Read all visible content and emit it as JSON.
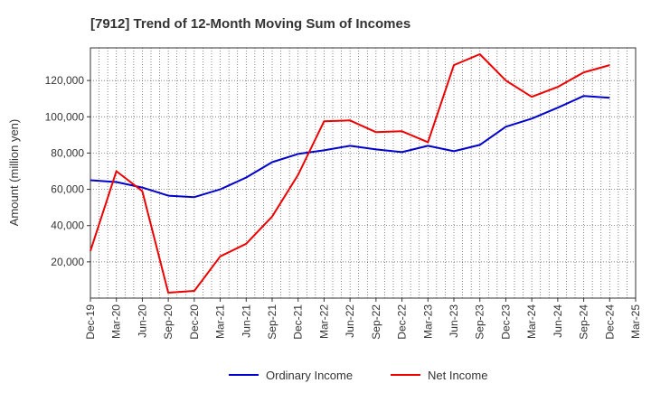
{
  "chart_data": {
    "type": "line",
    "title": "[7912]  Trend of 12-Month Moving Sum of Incomes",
    "xlabel": "",
    "ylabel": "Amount (million yen)",
    "categories": [
      "Dec-19",
      "Mar-20",
      "Jun-20",
      "Sep-20",
      "Dec-20",
      "Mar-21",
      "Jun-21",
      "Sep-21",
      "Dec-21",
      "Mar-22",
      "Jun-22",
      "Sep-22",
      "Dec-22",
      "Mar-23",
      "Jun-23",
      "Sep-23",
      "Dec-23",
      "Mar-24",
      "Jun-24",
      "Sep-24",
      "Dec-24",
      "Mar-25"
    ],
    "ylim": [
      0,
      138000
    ],
    "yticks": [
      20000,
      40000,
      60000,
      80000,
      100000,
      120000
    ],
    "ytick_labels": [
      "20,000",
      "40,000",
      "60,000",
      "80,000",
      "100,000",
      "120,000"
    ],
    "grid": true,
    "legend_position": "bottom",
    "series": [
      {
        "name": "Ordinary Income",
        "color": "#0000cc",
        "values": [
          65000,
          64000,
          61000,
          56500,
          55700,
          60000,
          66500,
          75000,
          79500,
          81500,
          84000,
          82000,
          80500,
          84000,
          81000,
          84500,
          94500,
          99000,
          105000,
          111500,
          110500,
          null
        ]
      },
      {
        "name": "Net Income",
        "color": "#ee0000",
        "values": [
          26000,
          70000,
          59000,
          3000,
          4000,
          23000,
          30000,
          45000,
          68000,
          97500,
          98000,
          91500,
          92000,
          86000,
          128500,
          134500,
          120000,
          111000,
          116500,
          124500,
          128500,
          null
        ]
      }
    ]
  }
}
